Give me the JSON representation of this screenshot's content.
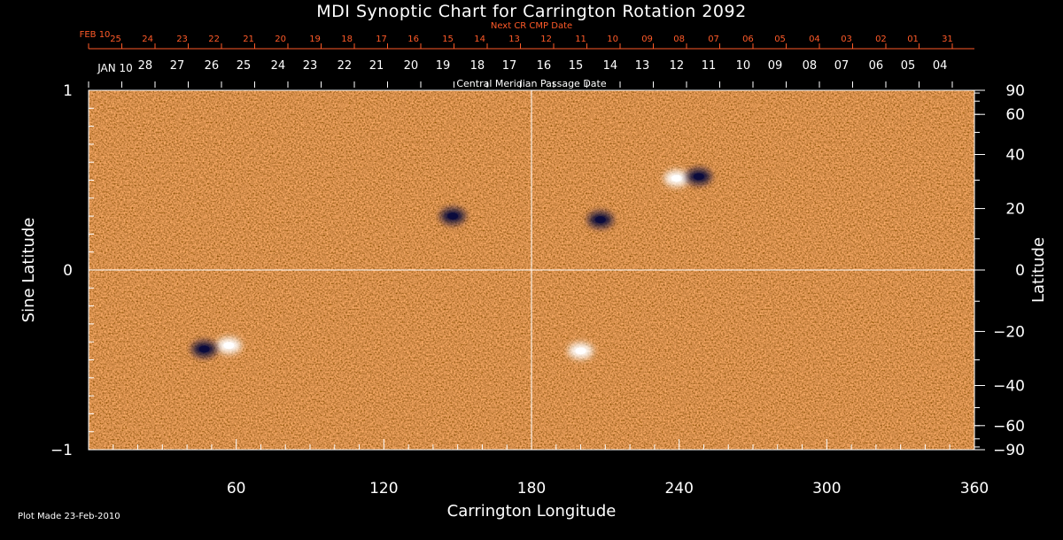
{
  "chart_data": {
    "type": "heatmap",
    "title": "MDI Synoptic Chart for Carrington Rotation 2092",
    "xlabel": "Carrington Longitude",
    "ylabel_left": "Sine Latitude",
    "ylabel_right": "Latitude",
    "xlim": [
      0,
      360
    ],
    "ylim_sine": [
      -1,
      1
    ],
    "x_ticks": [
      "60",
      "120",
      "180",
      "240",
      "300",
      "360"
    ],
    "x_tick_values": [
      60,
      120,
      180,
      240,
      300,
      360
    ],
    "y_left_ticks": [
      "1",
      "0",
      "−1"
    ],
    "y_left_tick_values": [
      1,
      0,
      -1
    ],
    "y_right_ticks": [
      "90",
      "60",
      "40",
      "20",
      "0",
      "−20",
      "−40",
      "−60",
      "−90"
    ],
    "y_right_tick_values": [
      90,
      60,
      40,
      20,
      0,
      -20,
      -40,
      -60,
      -90
    ],
    "top_axis_red_title": "Next CR CMP Date",
    "top_axis_red_first": "FEB 10",
    "top_axis_red_labels": [
      "25",
      "24",
      "23",
      "22",
      "21",
      "20",
      "19",
      "18",
      "17",
      "16",
      "15",
      "14",
      "13",
      "12",
      "11",
      "10",
      "09",
      "08",
      "07",
      "06",
      "05",
      "04",
      "03",
      "02",
      "01",
      "31"
    ],
    "top_axis_red_label_longitudes": [
      11,
      24,
      38,
      51,
      65,
      78,
      92,
      105,
      119,
      132,
      146,
      159,
      173,
      186,
      200,
      213,
      227,
      240,
      254,
      268,
      281,
      295,
      308,
      322,
      335,
      349
    ],
    "top_axis_white_title": "Central Meridian Passage Date",
    "top_axis_white_first": "JAN 10",
    "top_axis_white_labels": [
      "28",
      "27",
      "26",
      "25",
      "24",
      "23",
      "22",
      "21",
      "20",
      "19",
      "18",
      "17",
      "16",
      "15",
      "14",
      "13",
      "12",
      "11",
      "10",
      "09",
      "08",
      "07",
      "06",
      "05",
      "04"
    ],
    "top_axis_white_label_longitudes": [
      23,
      36,
      50,
      63,
      77,
      90,
      104,
      117,
      131,
      144,
      158,
      171,
      185,
      198,
      212,
      225,
      239,
      252,
      266,
      279,
      293,
      306,
      320,
      333,
      346
    ],
    "features": [
      {
        "longitude": 239,
        "sine_latitude": 0.51,
        "polarity": "positive"
      },
      {
        "longitude": 248,
        "sine_latitude": 0.52,
        "polarity": "negative"
      },
      {
        "longitude": 57,
        "sine_latitude": -0.42,
        "polarity": "positive"
      },
      {
        "longitude": 47,
        "sine_latitude": -0.44,
        "polarity": "negative"
      },
      {
        "longitude": 200,
        "sine_latitude": -0.45,
        "polarity": "positive"
      },
      {
        "longitude": 208,
        "sine_latitude": 0.28,
        "polarity": "negative"
      },
      {
        "longitude": 148,
        "sine_latitude": 0.3,
        "polarity": "negative"
      }
    ],
    "colors": {
      "background": "#000000",
      "field": "#f05a14",
      "positive": "#ffffff",
      "negative": "#0a0a3c",
      "axis": "#ffffff",
      "top_axis_red": "#ff5a28"
    }
  },
  "footer": {
    "plot_made": "Plot Made 23-Feb-2010"
  }
}
